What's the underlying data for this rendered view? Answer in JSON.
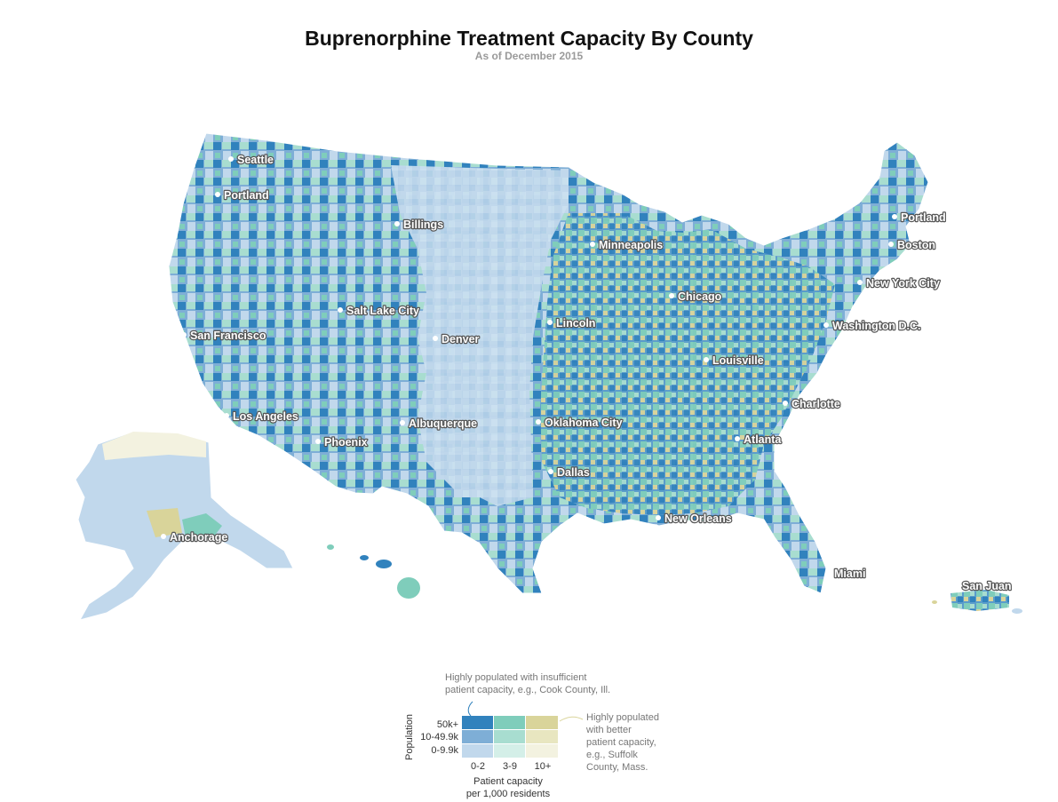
{
  "header": {
    "title": "Buprenorphine Treatment Capacity By County",
    "subtitle": "As of December 2015"
  },
  "colors": {
    "high_pop_low": "#3182bd",
    "high_pop_mid": "#7fcdbb",
    "high_pop_high": "#d9d49a",
    "mid_pop_low": "#7eaed6",
    "mid_pop_mid": "#a8ddd0",
    "mid_pop_high": "#e8e6c0",
    "low_pop_low": "#c1d8ec",
    "low_pop_mid": "#d4efe8",
    "low_pop_high": "#f3f2e0"
  },
  "cities": [
    {
      "name": "Seattle"
    },
    {
      "name": "Portland"
    },
    {
      "name": "Billings"
    },
    {
      "name": "Minneapolis"
    },
    {
      "name": "Chicago"
    },
    {
      "name": "Portland"
    },
    {
      "name": "Boston"
    },
    {
      "name": "New York City"
    },
    {
      "name": "Salt Lake City"
    },
    {
      "name": "Lincoln"
    },
    {
      "name": "San Francisco"
    },
    {
      "name": "Denver"
    },
    {
      "name": "Washington D.C."
    },
    {
      "name": "Louisville"
    },
    {
      "name": "Los Angeles"
    },
    {
      "name": "Albuquerque"
    },
    {
      "name": "Oklahoma City"
    },
    {
      "name": "Charlotte"
    },
    {
      "name": "Phoenix"
    },
    {
      "name": "Atlanta"
    },
    {
      "name": "Dallas"
    },
    {
      "name": "New Orleans"
    },
    {
      "name": "Anchorage"
    },
    {
      "name": "Miami"
    },
    {
      "name": "San Juan"
    }
  ],
  "legend": {
    "axis_label": "Population",
    "rows": [
      "50k+",
      "10-49.9k",
      "0-9.9k"
    ],
    "columns": [
      "0-2",
      "3-9",
      "10+"
    ],
    "x_title_line1": "Patient capacity",
    "x_title_line2": "per 1,000 residents",
    "note_top_line1": "Highly populated with insufficient",
    "note_top_line2": "patient capacity, e.g., Cook County, Ill.",
    "note_right_lines": [
      "Highly populated",
      "with better",
      "patient capacity,",
      "e.g., Suffolk",
      "County, Mass."
    ]
  }
}
